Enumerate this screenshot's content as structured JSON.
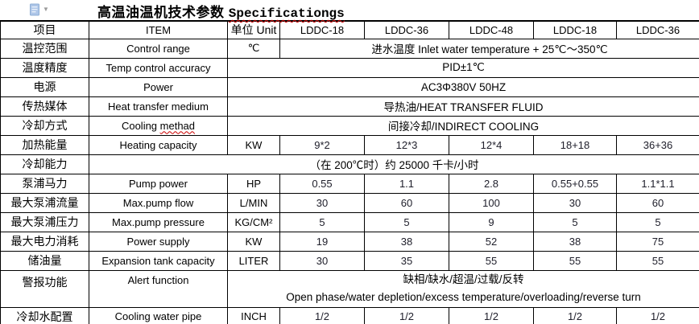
{
  "title": {
    "cn": "高温油温机技术参数",
    "en": "Specificationgs"
  },
  "toolbar": {
    "paste_options_caret": "▼"
  },
  "colors": {
    "border": "#000000",
    "spellcheck_wavy": "#cc0000",
    "paste_icon_blue": "#aec6e8",
    "value_text": "#20202c"
  },
  "table": {
    "header_cells": [
      {
        "t": "项目",
        "cls": "cn"
      },
      {
        "t": "ITEM"
      },
      {
        "t": "单位 Unit",
        "cls": "cn"
      },
      {
        "t": "LDDC-18"
      },
      {
        "t": "LDDC-36"
      },
      {
        "t": "LDDC-48"
      },
      {
        "t": "LDDC-18"
      },
      {
        "t": "LDDC-36"
      }
    ],
    "rows": [
      {
        "cells": [
          {
            "t": "温控范围",
            "cls": "cn"
          },
          {
            "t": "Control range"
          },
          {
            "t": "℃"
          },
          {
            "t": "进水温度 Inlet water temperature + 25℃～350℃",
            "colspan": 5,
            "cls": "mix"
          }
        ]
      },
      {
        "cells": [
          {
            "t": "温度精度",
            "cls": "cn"
          },
          {
            "t": "Temp control accuracy"
          },
          {
            "t": "PID±1℃",
            "colspan": 6,
            "cls": "mix"
          }
        ]
      },
      {
        "cells": [
          {
            "t": "电源",
            "cls": "cn"
          },
          {
            "t": "Power"
          },
          {
            "t": "AC3Φ380V 50HZ",
            "colspan": 6,
            "cls": "mix"
          }
        ]
      },
      {
        "cells": [
          {
            "t": "传热媒体",
            "cls": "cn"
          },
          {
            "t": "Heat transfer medium"
          },
          {
            "t": "导热油/HEAT TRANSFER FLUID",
            "colspan": 6,
            "cls": "mix"
          }
        ]
      },
      {
        "cells": [
          {
            "t": "冷却方式",
            "cls": "cn"
          },
          {
            "pre": "Cooling ",
            "wavy": "methad"
          },
          {
            "t": "间接冷却/INDIRECT COOLING",
            "colspan": 6,
            "cls": "mix"
          }
        ]
      },
      {
        "cells": [
          {
            "t": "加热能量",
            "cls": "cn"
          },
          {
            "t": "Heating capacity"
          },
          {
            "t": "KW"
          },
          {
            "t": "9*2",
            "cls": "val"
          },
          {
            "t": "12*3",
            "cls": "val"
          },
          {
            "t": "12*4",
            "cls": "val"
          },
          {
            "t": "18+18",
            "cls": "val"
          },
          {
            "t": "36+36",
            "cls": "val"
          }
        ]
      },
      {
        "cells": [
          {
            "t": "冷却能力",
            "cls": "cn"
          },
          {
            "t": "（在 200℃时）约 25000 千卡/小时",
            "colspan": 7,
            "cls": "mix"
          }
        ]
      },
      {
        "cells": [
          {
            "t": "泵浦马力",
            "cls": "cn"
          },
          {
            "t": "Pump power"
          },
          {
            "t": "HP"
          },
          {
            "t": "0.55",
            "cls": "val"
          },
          {
            "t": "1.1",
            "cls": "val"
          },
          {
            "t": "2.8",
            "cls": "val"
          },
          {
            "t": "0.55+0.55",
            "cls": "val"
          },
          {
            "t": "1.1*1.1",
            "cls": "val"
          }
        ]
      },
      {
        "cells": [
          {
            "t": "最大泵浦流量",
            "cls": "cn"
          },
          {
            "t": "Max.pump flow"
          },
          {
            "t": "L/MIN"
          },
          {
            "t": "30",
            "cls": "val"
          },
          {
            "t": "60",
            "cls": "val"
          },
          {
            "t": "100",
            "cls": "val"
          },
          {
            "t": "30",
            "cls": "val"
          },
          {
            "t": "60",
            "cls": "val"
          }
        ]
      },
      {
        "cells": [
          {
            "t": "最大泵浦压力",
            "cls": "cn"
          },
          {
            "t": "Max.pump pressure"
          },
          {
            "t": "KG/CM²"
          },
          {
            "t": "5",
            "cls": "val"
          },
          {
            "t": "5",
            "cls": "val"
          },
          {
            "t": "9",
            "cls": "val"
          },
          {
            "t": "5",
            "cls": "val"
          },
          {
            "t": "5",
            "cls": "val"
          }
        ]
      },
      {
        "cells": [
          {
            "t": "最大电力消耗",
            "cls": "cn"
          },
          {
            "t": "Power supply"
          },
          {
            "t": "KW"
          },
          {
            "t": "19",
            "cls": "val"
          },
          {
            "t": "38",
            "cls": "val"
          },
          {
            "t": "52",
            "cls": "val"
          },
          {
            "t": "38",
            "cls": "val"
          },
          {
            "t": "75",
            "cls": "val"
          }
        ]
      },
      {
        "cells": [
          {
            "t": "储油量",
            "cls": "cn"
          },
          {
            "t": "Expansion tank capacity"
          },
          {
            "t": "LITER"
          },
          {
            "t": "30",
            "cls": "val"
          },
          {
            "t": "35",
            "cls": "val"
          },
          {
            "t": "55",
            "cls": "val"
          },
          {
            "t": "55",
            "cls": "val"
          },
          {
            "t": "55",
            "cls": "val"
          }
        ]
      },
      {
        "cls": "alert-row",
        "cells": [
          {
            "t": "警报功能",
            "cls": "cn top"
          },
          {
            "t": "Alert function",
            "cls": "top"
          },
          {
            "lines": [
              "缺相/缺水/超温/过载/反转",
              "Open phase/water depletion/excess temperature/overloading/reverse turn"
            ],
            "colspan": 6,
            "cls": "mix"
          }
        ]
      },
      {
        "cells": [
          {
            "t": "冷却水配置",
            "cls": "cn"
          },
          {
            "t": "Cooling water pipe"
          },
          {
            "t": "INCH"
          },
          {
            "t": "1/2",
            "cls": "val"
          },
          {
            "t": "1/2",
            "cls": "val"
          },
          {
            "t": "1/2",
            "cls": "val"
          },
          {
            "t": "1/2",
            "cls": "val"
          },
          {
            "t": "1/2",
            "cls": "val"
          }
        ]
      }
    ]
  }
}
